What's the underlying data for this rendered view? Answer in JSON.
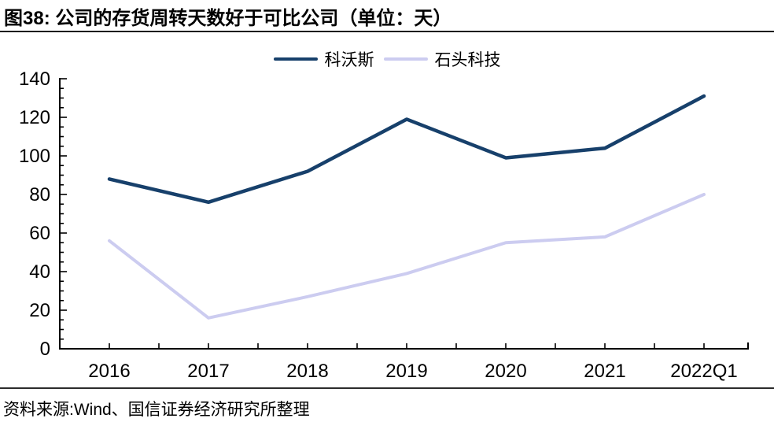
{
  "header": {
    "title": "图38: 公司的存货周转天数好于可比公司（单位：天）"
  },
  "chart_data": {
    "type": "line",
    "title": "公司的存货周转天数好于可比公司",
    "unit": "天",
    "categories": [
      "2016",
      "2017",
      "2018",
      "2019",
      "2020",
      "2021",
      "2022Q1"
    ],
    "series": [
      {
        "name": "科沃斯",
        "color": "#17406B",
        "values": [
          88,
          76,
          92,
          119,
          99,
          104,
          131
        ]
      },
      {
        "name": "石头科技",
        "color": "#CCCCF0",
        "values": [
          56,
          16,
          27,
          39,
          55,
          58,
          80
        ]
      }
    ],
    "xlabel": "",
    "ylabel": "",
    "ylim": [
      0,
      140
    ],
    "ytick_step": 20,
    "ytick_minor_step": 5,
    "grid": false,
    "legend_position": "top-center",
    "markers": false
  },
  "footer": {
    "source": "资料来源:Wind、国信证券经济研究所整理"
  }
}
